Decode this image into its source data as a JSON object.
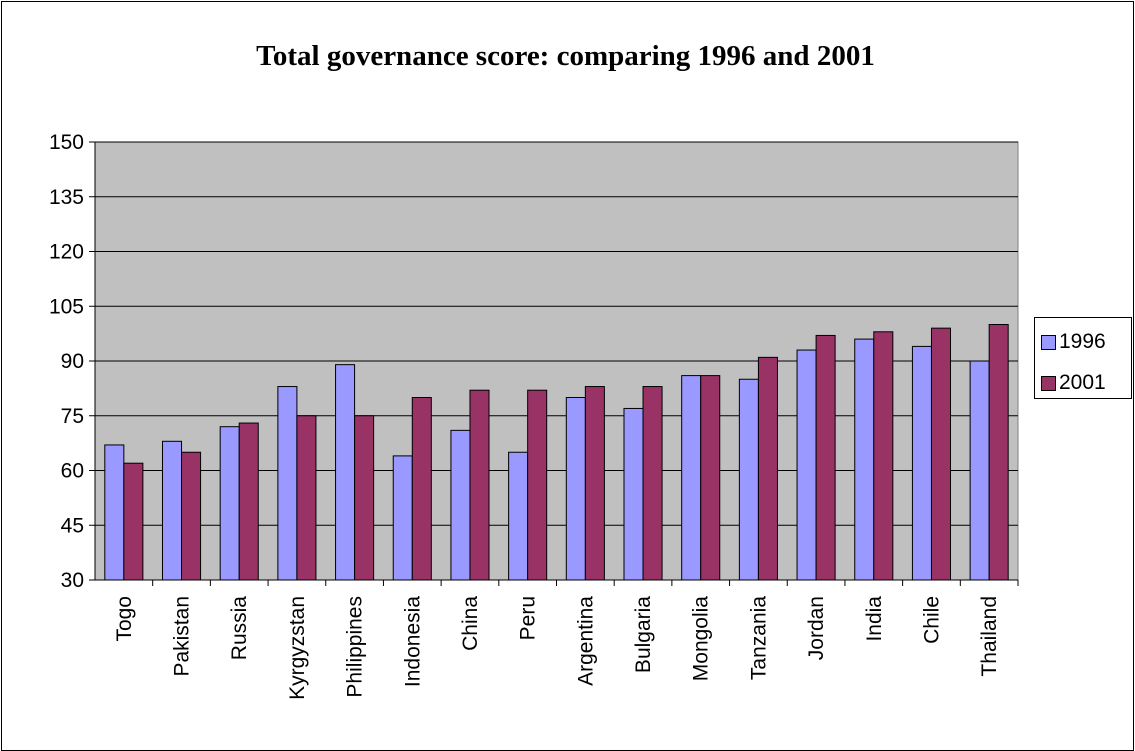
{
  "chart_data": {
    "type": "bar",
    "title": "Total governance score: comparing 1996 and 2001",
    "categories": [
      "Togo",
      "Pakistan",
      "Russia",
      "Kyrgyzstan",
      "Philippines",
      "Indonesia",
      "China",
      "Peru",
      "Argentina",
      "Bulgaria",
      "Mongolia",
      "Tanzania",
      "Jordan",
      "India",
      "Chile",
      "Thailand"
    ],
    "series": [
      {
        "name": "1996",
        "color": "#9999ff",
        "values": [
          67,
          68,
          72,
          83,
          89,
          64,
          71,
          65,
          80,
          77,
          86,
          85,
          93,
          96,
          94,
          90
        ]
      },
      {
        "name": "2001",
        "color": "#993366",
        "values": [
          62,
          65,
          73,
          75,
          75,
          80,
          82,
          82,
          83,
          83,
          86,
          91,
          97,
          98,
          99,
          100
        ]
      }
    ],
    "ylim": [
      30,
      150
    ],
    "yticks": [
      30,
      45,
      60,
      75,
      90,
      105,
      120,
      135,
      150
    ],
    "xlabel": "",
    "ylabel": "",
    "grid": true,
    "plot_background": "#c0c0c0",
    "legend_position": "right"
  }
}
